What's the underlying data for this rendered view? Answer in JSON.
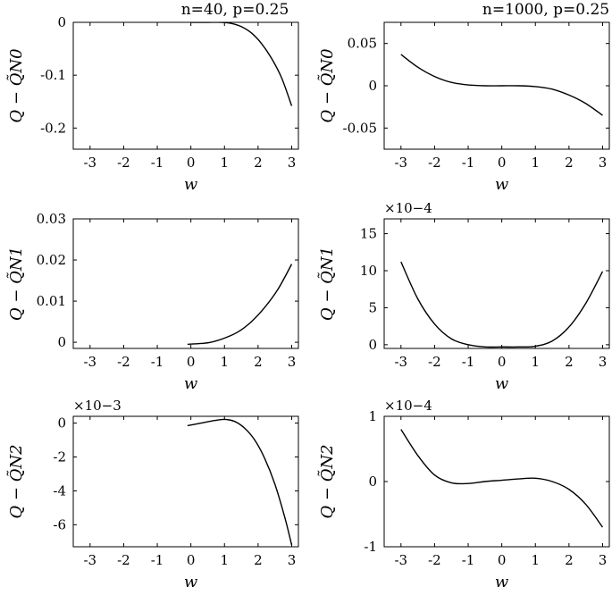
{
  "figure": {
    "line_color": "#000000",
    "background": "#ffffff"
  },
  "chart_data": [
    {
      "id": "p1",
      "type": "line",
      "title": "n=40, p=0.25",
      "xlabel": "w",
      "ylabel": "Q − Q̃N0",
      "exponent_label": "",
      "xlim": [
        -3.5,
        3.2
      ],
      "ylim": [
        -0.24,
        0
      ],
      "xticks": [
        "-3",
        "-2",
        "-1",
        "0",
        "1",
        "2",
        "3"
      ],
      "xtick_values": [
        -3,
        -2,
        -1,
        0,
        1,
        2,
        3
      ],
      "yticks": [
        "0",
        "-0.1",
        "-0.2"
      ],
      "ytick_values": [
        0,
        -0.1,
        -0.2
      ],
      "x": [
        0.0,
        0.5,
        0.9,
        1.2,
        1.5,
        1.8,
        2.1,
        2.4,
        2.7,
        3.0
      ],
      "y": [
        0.0,
        0.0,
        0.0,
        -0.002,
        -0.008,
        -0.02,
        -0.04,
        -0.068,
        -0.105,
        -0.158
      ]
    },
    {
      "id": "p2",
      "type": "line",
      "title": "n=1000, p=0.25",
      "xlabel": "w",
      "ylabel": "Q − Q̃N0",
      "exponent_label": "",
      "xlim": [
        -3.5,
        3.2
      ],
      "ylim": [
        -0.075,
        0.075
      ],
      "xticks": [
        "-3",
        "-2",
        "-1",
        "0",
        "1",
        "2",
        "3"
      ],
      "xtick_values": [
        -3,
        -2,
        -1,
        0,
        1,
        2,
        3
      ],
      "yticks": [
        "0.05",
        "0",
        "-0.05"
      ],
      "ytick_values": [
        0.05,
        0,
        -0.05
      ],
      "x": [
        -3.0,
        -2.5,
        -2.0,
        -1.5,
        -1.0,
        -0.5,
        0.0,
        0.5,
        1.0,
        1.5,
        2.0,
        2.5,
        3.0
      ],
      "y": [
        0.037,
        0.022,
        0.011,
        0.004,
        0.001,
        0.0,
        0.0,
        0.0,
        -0.001,
        -0.004,
        -0.011,
        -0.021,
        -0.035
      ]
    },
    {
      "id": "p3",
      "type": "line",
      "title": "",
      "xlabel": "w",
      "ylabel": "Q − Q̃N1",
      "exponent_label": "",
      "xlim": [
        -3.5,
        3.2
      ],
      "ylim": [
        -0.0015,
        0.03
      ],
      "xticks": [
        "-3",
        "-2",
        "-1",
        "0",
        "1",
        "2",
        "3"
      ],
      "xtick_values": [
        -3,
        -2,
        -1,
        0,
        1,
        2,
        3
      ],
      "yticks": [
        "0.03",
        "0.02",
        "0.01",
        "0"
      ],
      "ytick_values": [
        0.03,
        0.02,
        0.01,
        0
      ],
      "x": [
        -0.1,
        0.3,
        0.6,
        1.0,
        1.4,
        1.8,
        2.2,
        2.6,
        3.0
      ],
      "y": [
        -0.0005,
        -0.0003,
        0.0,
        0.001,
        0.0025,
        0.005,
        0.0085,
        0.013,
        0.019
      ]
    },
    {
      "id": "p4",
      "type": "line",
      "title": "",
      "xlabel": "w",
      "ylabel": "Q − Q̃N1",
      "exponent_label": "×10−4",
      "xlim": [
        -3.5,
        3.2
      ],
      "ylim": [
        -0.5,
        17
      ],
      "xticks": [
        "-3",
        "-2",
        "-1",
        "0",
        "1",
        "2",
        "3"
      ],
      "xtick_values": [
        -3,
        -2,
        -1,
        0,
        1,
        2,
        3
      ],
      "yticks": [
        "15",
        "10",
        "5",
        "0"
      ],
      "ytick_values": [
        15,
        10,
        5,
        0
      ],
      "x": [
        -3.0,
        -2.5,
        -2.0,
        -1.5,
        -1.0,
        -0.5,
        0.0,
        0.5,
        1.0,
        1.5,
        2.0,
        2.5,
        3.0
      ],
      "y": [
        11.2,
        6.2,
        2.8,
        0.8,
        0.0,
        -0.3,
        -0.3,
        -0.3,
        -0.2,
        0.5,
        2.4,
        5.6,
        9.9
      ]
    },
    {
      "id": "p5",
      "type": "line",
      "title": "",
      "xlabel": "w",
      "ylabel": "Q − Q̃N2",
      "exponent_label": "×10−3",
      "xlim": [
        -3.5,
        3.2
      ],
      "ylim": [
        -7.3,
        0.4
      ],
      "xticks": [
        "-3",
        "-2",
        "-1",
        "0",
        "1",
        "2",
        "3"
      ],
      "xtick_values": [
        -3,
        -2,
        -1,
        0,
        1,
        2,
        3
      ],
      "yticks": [
        "0",
        "-2",
        "-4",
        "-6"
      ],
      "ytick_values": [
        0,
        -2,
        -4,
        -6
      ],
      "x": [
        -0.1,
        0.3,
        0.7,
        1.0,
        1.3,
        1.6,
        1.9,
        2.2,
        2.5,
        2.8,
        3.0
      ],
      "y": [
        -0.15,
        0.0,
        0.15,
        0.22,
        0.1,
        -0.3,
        -1.0,
        -2.1,
        -3.6,
        -5.6,
        -7.2
      ]
    },
    {
      "id": "p6",
      "type": "line",
      "title": "",
      "xlabel": "w",
      "ylabel": "Q − Q̃N2",
      "exponent_label": "×10−4",
      "xlim": [
        -3.5,
        3.2
      ],
      "ylim": [
        -1,
        1
      ],
      "xticks": [
        "-3",
        "-2",
        "-1",
        "0",
        "1",
        "2",
        "3"
      ],
      "xtick_values": [
        -3,
        -2,
        -1,
        0,
        1,
        2,
        3
      ],
      "yticks": [
        "1",
        "0",
        "-1"
      ],
      "ytick_values": [
        1,
        0,
        -1
      ],
      "x": [
        -3.0,
        -2.5,
        -2.0,
        -1.5,
        -1.0,
        -0.5,
        0.0,
        0.5,
        1.0,
        1.5,
        2.0,
        2.5,
        3.0
      ],
      "y": [
        0.8,
        0.4,
        0.1,
        -0.02,
        -0.03,
        0.0,
        0.02,
        0.04,
        0.05,
        0.0,
        -0.12,
        -0.35,
        -0.7
      ]
    }
  ]
}
